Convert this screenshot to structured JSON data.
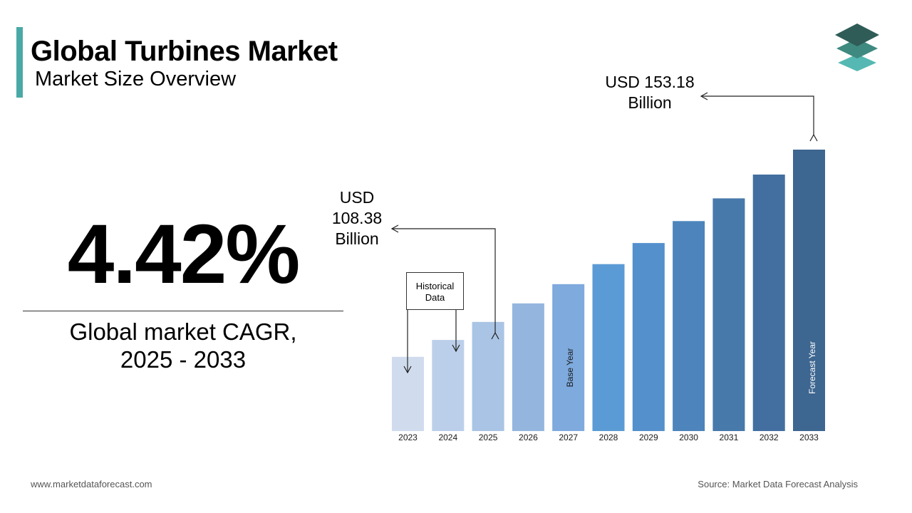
{
  "header": {
    "title": "Global Turbines Market",
    "subtitle": "Market Size Overview"
  },
  "cagr": {
    "value": "4.42%",
    "label_line1": "Global market CAGR,",
    "label_line2": "2025 - 2033"
  },
  "callouts": {
    "start_line1": "USD",
    "start_line2": "108.38",
    "start_line3": "Billion",
    "end_line1": "USD 153.18",
    "end_line2": "Billion"
  },
  "annotations": {
    "historical_line1": "Historical",
    "historical_line2": "Data",
    "base_year": "Base Year",
    "forecast_year": "Forecast Year"
  },
  "footer": {
    "website": "www.marketdataforecast.com",
    "source": "Source: Market Data Forecast Analysis"
  },
  "colors": {
    "accent": "#4aa9a6",
    "logo_top": "#2f5c56",
    "logo_mid": "#3f8a80",
    "logo_bottom": "#55b8b3"
  },
  "chart_data": {
    "type": "bar",
    "categories": [
      "2023",
      "2024",
      "2025",
      "2026",
      "2027",
      "2028",
      "2029",
      "2030",
      "2031",
      "2032",
      "2033"
    ],
    "values": [
      99.3,
      103.7,
      108.38,
      113.2,
      118.2,
      123.4,
      128.9,
      134.6,
      140.5,
      146.7,
      153.18
    ],
    "bar_colors": [
      "#d0dcee",
      "#bccfea",
      "#a9c4e4",
      "#94b6de",
      "#7eaadd",
      "#5b9bd5",
      "#5390cc",
      "#4d84bb",
      "#4779ab",
      "#426f9f",
      "#3d6690"
    ],
    "ylim": [
      80,
      160
    ],
    "unit": "USD Billion",
    "base_year": "2027",
    "forecast_year": "2033",
    "grid": false,
    "legend": "none"
  }
}
